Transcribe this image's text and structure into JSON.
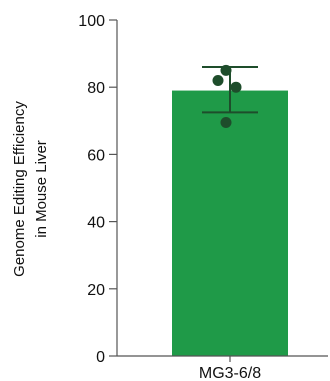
{
  "chart_data": {
    "type": "bar",
    "categories": [
      "MG3-6/8"
    ],
    "values": [
      79
    ],
    "error": {
      "lower": 72.5,
      "upper": 86
    },
    "points": [
      {
        "category": "MG3-6/8",
        "value": 85
      },
      {
        "category": "MG3-6/8",
        "value": 82
      },
      {
        "category": "MG3-6/8",
        "value": 80
      },
      {
        "category": "MG3-6/8",
        "value": 69.5
      }
    ],
    "ylabel_lines": [
      "Genome Editing Efficiency",
      "in Mouse Liver"
    ],
    "ylim": [
      0,
      100
    ],
    "yticks": [
      0,
      20,
      40,
      60,
      80,
      100
    ],
    "grid": false,
    "colors": {
      "bar": "#1f9a48",
      "points": "#1e4d2b",
      "error_bar": "#1e4d2b",
      "axis": "#555555"
    }
  }
}
